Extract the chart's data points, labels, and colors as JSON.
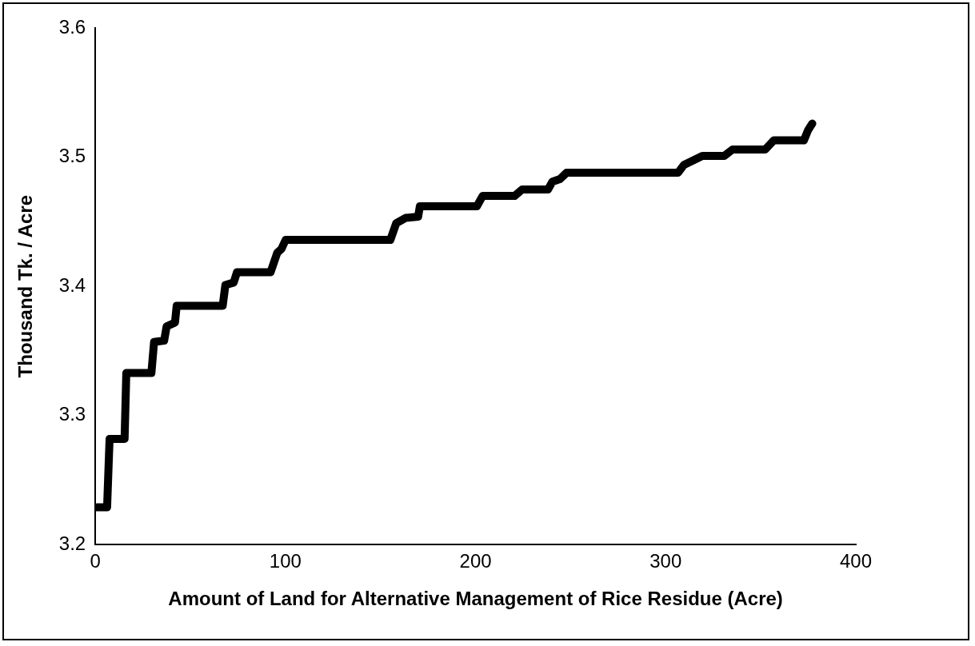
{
  "chart_data": {
    "type": "line",
    "xlabel": "Amount of Land for Alternative Management of Rice Residue (Acre)",
    "ylabel": "Thousand Tk. / Acre",
    "xlim": [
      0,
      400
    ],
    "xticks": [
      0,
      100,
      200,
      300,
      400
    ],
    "ylim": [
      3.2,
      3.6
    ],
    "yticks": [
      3.2,
      3.3,
      3.4,
      3.5,
      3.6
    ],
    "grid": false,
    "legend": false,
    "marker": "none",
    "line_style": "solid",
    "series": [
      {
        "color": "#000000",
        "x": [
          0.9,
          6.2,
          7.5,
          15.4,
          16.3,
          29.5,
          30.9,
          36.2,
          37.5,
          41.9,
          42.8,
          67.0,
          68.4,
          72.8,
          74.5,
          92.2,
          95.7,
          97.9,
          100.1,
          155.2,
          158.3,
          163.2,
          169.8,
          170.7,
          200.7,
          203.7,
          220.5,
          224.5,
          238.1,
          240.4,
          244.3,
          247.9,
          306.5,
          309.6,
          319.3,
          330.8,
          335.2,
          352.4,
          356.8,
          372.7,
          374.9,
          377.1
        ],
        "values": [
          3.229,
          3.229,
          3.282,
          3.282,
          3.333,
          3.333,
          3.357,
          3.358,
          3.369,
          3.372,
          3.385,
          3.385,
          3.401,
          3.403,
          3.411,
          3.411,
          3.426,
          3.429,
          3.436,
          3.436,
          3.449,
          3.453,
          3.454,
          3.462,
          3.462,
          3.47,
          3.47,
          3.475,
          3.475,
          3.481,
          3.483,
          3.488,
          3.488,
          3.494,
          3.501,
          3.501,
          3.506,
          3.506,
          3.513,
          3.513,
          3.521,
          3.526
        ]
      }
    ]
  }
}
